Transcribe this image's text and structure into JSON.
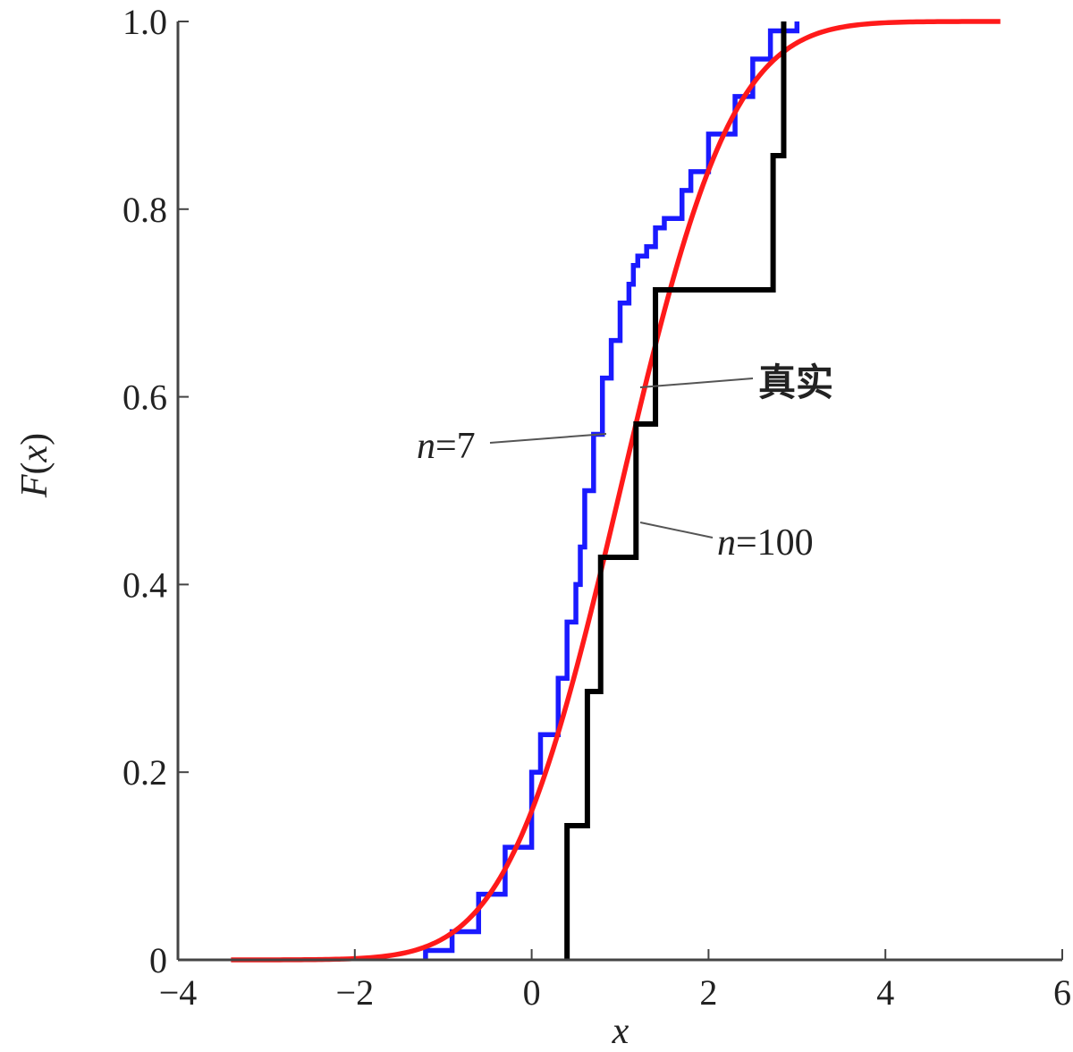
{
  "chart_data": {
    "type": "line",
    "title": "",
    "xlabel": "x",
    "ylabel": "F(x)",
    "ylabel_parts": {
      "name": "F",
      "arg": "x"
    },
    "xlim": [
      -4,
      6
    ],
    "ylim": [
      0,
      1
    ],
    "xticks": [
      -4,
      -2,
      0,
      2,
      4,
      6
    ],
    "xtick_labels": [
      "−4",
      "−2",
      "0",
      "2",
      "4",
      "6"
    ],
    "yticks": [
      0,
      0.2,
      0.4,
      0.6,
      0.8,
      1.0
    ],
    "ytick_labels": [
      "0",
      "0.2",
      "0.4",
      "0.6",
      "0.8",
      "1.0"
    ],
    "grid": false,
    "colors": {
      "true": "#ff1a1a",
      "n7": "#000000",
      "n100": "#1a1aff",
      "axis": "#444444"
    },
    "series": [
      {
        "id": "true",
        "name": "真实",
        "style": "smooth",
        "cdf": {
          "mu": 1.0,
          "sigma": 1.0
        },
        "x_range": [
          -3.4,
          5.3
        ]
      },
      {
        "id": "n7",
        "name": "n=7",
        "style": "step",
        "x": [
          0.4,
          0.63,
          0.78,
          1.18,
          1.4,
          2.73,
          2.85
        ],
        "y": [
          0.143,
          0.286,
          0.429,
          0.571,
          0.714,
          0.857,
          1.0
        ]
      },
      {
        "id": "n100",
        "name": "n=100",
        "style": "step",
        "x": [
          -1.2,
          -0.9,
          -0.6,
          -0.3,
          0.0,
          0.1,
          0.3,
          0.4,
          0.5,
          0.55,
          0.6,
          0.7,
          0.8,
          0.9,
          1.0,
          1.1,
          1.15,
          1.2,
          1.3,
          1.4,
          1.5,
          1.7,
          1.8,
          2.0,
          2.3,
          2.5,
          2.7,
          3.0
        ],
        "y": [
          0.01,
          0.03,
          0.07,
          0.12,
          0.2,
          0.24,
          0.3,
          0.36,
          0.4,
          0.44,
          0.5,
          0.56,
          0.62,
          0.66,
          0.7,
          0.72,
          0.74,
          0.75,
          0.76,
          0.78,
          0.79,
          0.82,
          0.84,
          0.88,
          0.92,
          0.96,
          0.99,
          1.0
        ]
      }
    ],
    "annotations": [
      {
        "id": "true",
        "prefix": "",
        "italic": "",
        "text": "真实"
      },
      {
        "id": "n7",
        "prefix": "",
        "italic": "n",
        "text": "=7"
      },
      {
        "id": "n100",
        "prefix": "",
        "italic": "n",
        "text": "=100"
      }
    ]
  }
}
